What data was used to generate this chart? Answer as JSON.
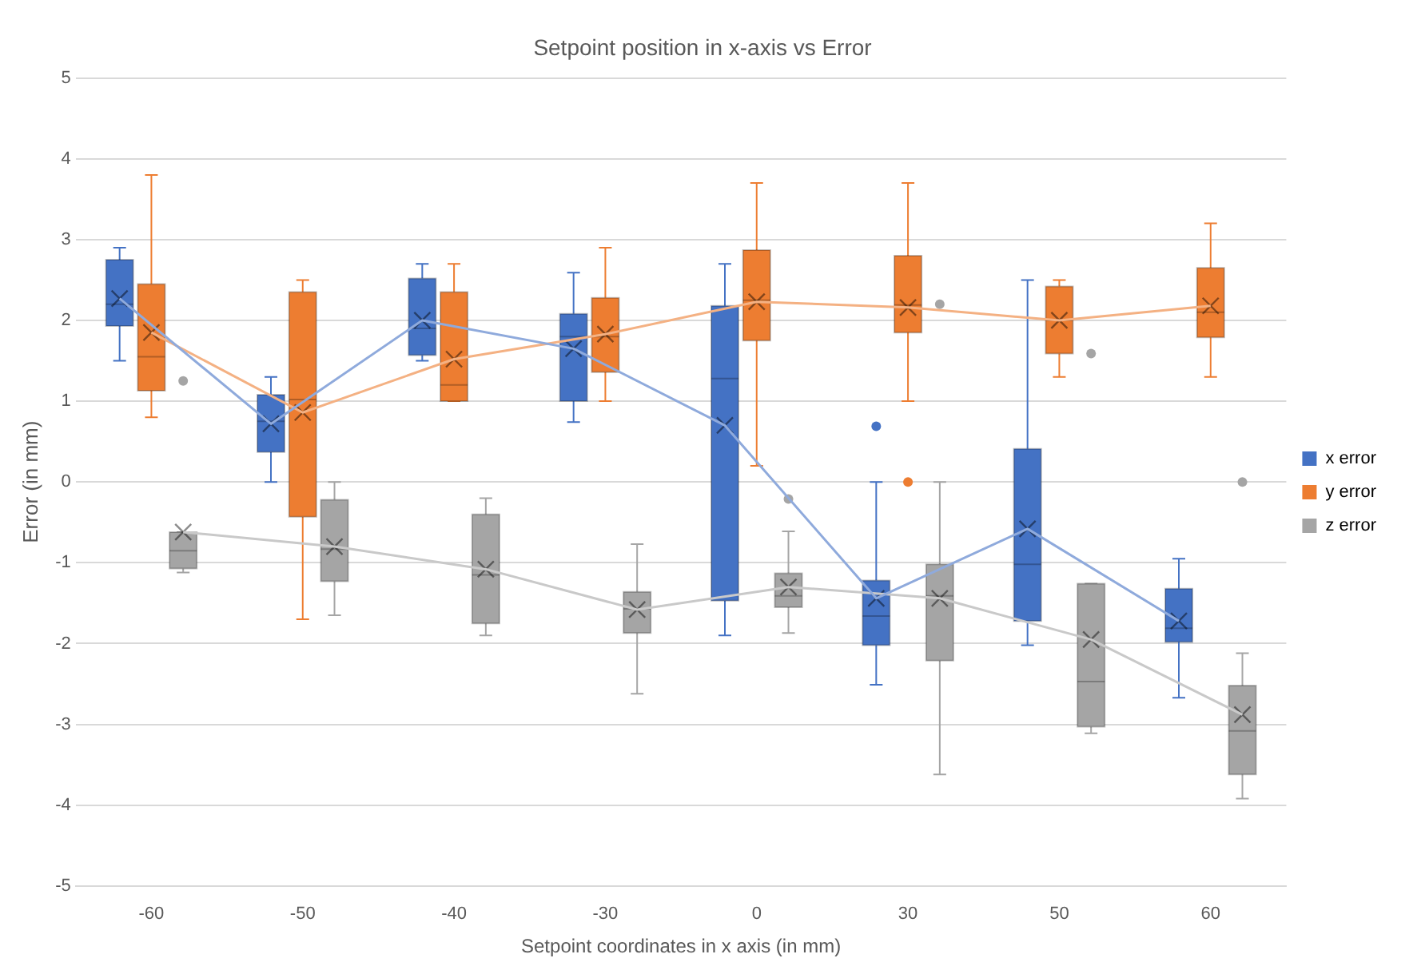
{
  "chart_data": {
    "type": "box",
    "title": "Setpoint position in x-axis vs Error",
    "xlabel": "Setpoint coordinates in x axis (in mm)",
    "ylabel": "Error (in mm)",
    "categories": [
      "-60",
      "-50",
      "-40",
      "-30",
      "0",
      "30",
      "50",
      "60"
    ],
    "ylim": [
      -5,
      5
    ],
    "yticks": [
      -5,
      -4,
      -3,
      -2,
      -1,
      0,
      1,
      2,
      3,
      4,
      5
    ],
    "grid": "y",
    "legend": "right",
    "series": [
      {
        "name": "x error",
        "type": "box",
        "color": "#4472c4",
        "boxes": [
          {
            "low": 1.5,
            "q1": 1.93,
            "median": 2.2,
            "q3": 2.75,
            "high": 2.9,
            "mean": 2.27
          },
          {
            "low": 0,
            "q1": 0.37,
            "median": 0.75,
            "q3": 1.08,
            "high": 1.3,
            "mean": 0.72
          },
          {
            "low": 1.5,
            "q1": 1.57,
            "median": 1.9,
            "q3": 2.52,
            "high": 2.7,
            "mean": 2.0
          },
          {
            "low": 0.74,
            "q1": 1.0,
            "median": 1.8,
            "q3": 2.08,
            "high": 2.59,
            "mean": 1.65
          },
          {
            "low": -1.9,
            "q1": -1.47,
            "median": 1.28,
            "q3": 2.18,
            "high": 2.7,
            "mean": 0.7
          },
          {
            "low": -2.51,
            "q1": -2.02,
            "median": -1.66,
            "q3": -1.22,
            "high": 0,
            "mean": -1.44,
            "outliers": [
              0.69
            ]
          },
          {
            "low": -2.02,
            "q1": -1.72,
            "median": -1.02,
            "q3": 0.41,
            "high": 2.5,
            "mean": -0.58
          },
          {
            "low": -2.67,
            "q1": -1.98,
            "median": -1.81,
            "q3": -1.32,
            "high": -0.95,
            "mean": -1.72
          }
        ]
      },
      {
        "name": "y error",
        "type": "box",
        "color": "#ed7d31",
        "boxes": [
          {
            "low": 0.8,
            "q1": 1.13,
            "median": 1.55,
            "q3": 2.45,
            "high": 3.8,
            "mean": 1.85
          },
          {
            "low": -1.7,
            "q1": -0.43,
            "median": 1.02,
            "q3": 2.35,
            "high": 2.5,
            "mean": 0.86
          },
          {
            "low": 1.0,
            "q1": 1.0,
            "median": 1.2,
            "q3": 2.35,
            "high": 2.7,
            "mean": 1.52
          },
          {
            "low": 1.0,
            "q1": 1.36,
            "median": 1.8,
            "q3": 2.28,
            "high": 2.9,
            "mean": 1.83
          },
          {
            "low": 0.2,
            "q1": 1.75,
            "median": 2.25,
            "q3": 2.87,
            "high": 3.7,
            "mean": 2.23
          },
          {
            "low": 1.0,
            "q1": 1.85,
            "median": 2.19,
            "q3": 2.8,
            "high": 3.7,
            "mean": 2.16,
            "outliers": [
              0
            ]
          },
          {
            "low": 1.3,
            "q1": 1.59,
            "median": 2.0,
            "q3": 2.42,
            "high": 2.5,
            "mean": 2.0
          },
          {
            "low": 1.3,
            "q1": 1.79,
            "median": 2.1,
            "q3": 2.65,
            "high": 3.2,
            "mean": 2.18
          }
        ]
      },
      {
        "name": "z error",
        "type": "box",
        "color": "#a5a5a5",
        "boxes": [
          {
            "low": -1.12,
            "q1": -1.07,
            "median": -0.85,
            "q3": -0.62,
            "high": -0.62,
            "mean": -0.62,
            "outliers": [
              1.25
            ]
          },
          {
            "low": -1.65,
            "q1": -1.23,
            "median": -0.83,
            "q3": -0.22,
            "high": 0,
            "mean": -0.8
          },
          {
            "low": -1.9,
            "q1": -1.75,
            "median": -1.15,
            "q3": -0.4,
            "high": -0.2,
            "mean": -1.08
          },
          {
            "low": -2.62,
            "q1": -1.87,
            "median": -1.57,
            "q3": -1.36,
            "high": -0.77,
            "mean": -1.58
          },
          {
            "low": -1.87,
            "q1": -1.55,
            "median": -1.41,
            "q3": -1.13,
            "high": -0.61,
            "mean": -1.3,
            "outliers": [
              -0.21
            ]
          },
          {
            "low": -3.62,
            "q1": -2.21,
            "median": -1.41,
            "q3": -1.02,
            "high": 0,
            "mean": -1.44,
            "outliers": [
              2.2
            ]
          },
          {
            "low": -3.11,
            "q1": -3.03,
            "median": -2.47,
            "q3": -1.26,
            "high": -1.26,
            "mean": -1.95,
            "outliers": [
              1.59
            ]
          },
          {
            "low": -3.92,
            "q1": -3.62,
            "median": -3.08,
            "q3": -2.52,
            "high": -2.12,
            "mean": -2.88,
            "outliers": [
              0
            ]
          }
        ]
      },
      {
        "type": "line",
        "color": "#8faadc",
        "values": [
          2.27,
          0.72,
          2.0,
          1.65,
          0.7,
          -1.44,
          -0.58,
          -1.72
        ]
      },
      {
        "type": "line",
        "color": "#f4b183",
        "values": [
          1.85,
          0.86,
          1.52,
          1.83,
          2.23,
          2.16,
          2.0,
          2.18
        ]
      },
      {
        "type": "line",
        "color": "#c9c9c9",
        "values": [
          -0.62,
          -0.8,
          -1.08,
          -1.58,
          -1.3,
          -1.44,
          -1.95,
          -2.88
        ]
      }
    ]
  }
}
